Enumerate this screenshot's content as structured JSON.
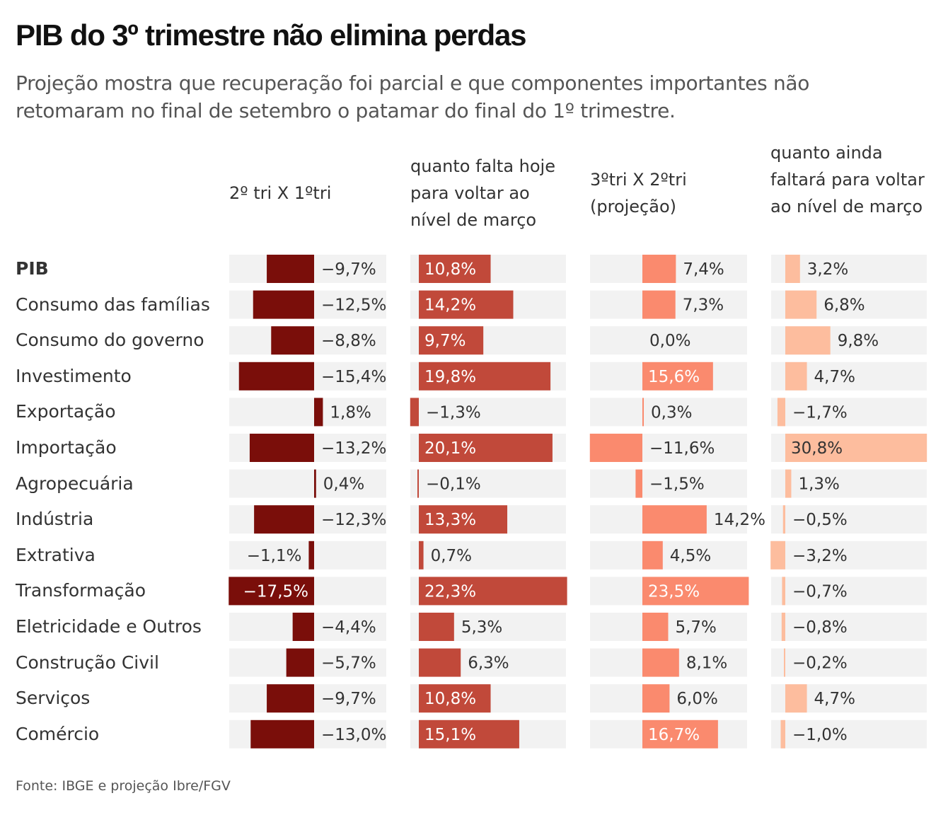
{
  "title": "PIB do 3º trimestre não elimina perdas",
  "subtitle": "Projeção mostra que recuperação foi parcial e que componentes importantes não retomaram no final de setembro o patamar do final do 1º trimestre.",
  "source": "Fonte: IBGE e projeção Ibre/FGV",
  "chart_data": {
    "type": "bar",
    "categories": [
      "PIB",
      "Consumo das famílias",
      "Consumo do governo",
      "Investimento",
      "Exportação",
      "Importação",
      "Agropecuária",
      "Indústria",
      "Extrativa",
      "Transformação",
      "Eletricidade e Outros",
      "Construção Civil",
      "Serviços",
      "Comércio"
    ],
    "bold_categories": [
      "PIB"
    ],
    "series": [
      {
        "name": "2º tri X 1ºtri",
        "color": "#7a0e0a",
        "values": [
          -9.7,
          -12.5,
          -8.8,
          -15.4,
          1.8,
          -13.2,
          0.4,
          -12.3,
          -1.1,
          -17.5,
          -4.4,
          -5.7,
          -9.7,
          -13.0
        ],
        "labels": [
          "−9,7%",
          "−12,5%",
          "−8,8%",
          "−15,4%",
          "1,8%",
          "−13,2%",
          "0,4%",
          "−12,3%",
          "−1,1%",
          "−17,5%",
          "−4,4%",
          "−5,7%",
          "−9,7%",
          "−13,0%"
        ]
      },
      {
        "name": "quanto falta hoje para voltar ao nível de março",
        "color": "#c1493a",
        "values": [
          10.8,
          14.2,
          9.7,
          19.8,
          -1.3,
          20.1,
          -0.1,
          13.3,
          0.7,
          22.3,
          5.3,
          6.3,
          10.8,
          15.1
        ],
        "labels": [
          "10,8%",
          "14,2%",
          "9,7%",
          "19,8%",
          "−1,3%",
          "20,1%",
          "−0,1%",
          "13,3%",
          "0,7%",
          "22,3%",
          "5,3%",
          "6,3%",
          "10,8%",
          "15,1%"
        ]
      },
      {
        "name": "3ºtri X 2ºtri (projeção)",
        "color": "#fa8a6e",
        "values": [
          7.4,
          7.3,
          0.0,
          15.6,
          0.3,
          -11.6,
          -1.5,
          14.2,
          4.5,
          23.5,
          5.7,
          8.1,
          6.0,
          16.7
        ],
        "labels": [
          "7,4%",
          "7,3%",
          "0,0%",
          "15,6%",
          "0,3%",
          "−11,6%",
          "−1,5%",
          "14,2%",
          "4,5%",
          "23,5%",
          "5,7%",
          "8,1%",
          "6,0%",
          "16,7%"
        ]
      },
      {
        "name": "quanto ainda faltará para voltar ao nível de março",
        "color": "#fdbd9e",
        "values": [
          3.2,
          6.8,
          9.8,
          4.7,
          -1.7,
          30.8,
          1.3,
          -0.5,
          -3.2,
          -0.7,
          -0.8,
          -0.2,
          4.7,
          -1.0
        ],
        "labels": [
          "3,2%",
          "6,8%",
          "9,8%",
          "4,7%",
          "−1,7%",
          "30,8%",
          "1,3%",
          "−0,5%",
          "−3,2%",
          "−0,7%",
          "−0,8%",
          "−0,2%",
          "4,7%",
          "−1,0%"
        ]
      }
    ],
    "colors": {
      "panel_background": "#f2f2f2",
      "label_dark": "#333333",
      "label_on_bar": "#ffffff"
    }
  }
}
